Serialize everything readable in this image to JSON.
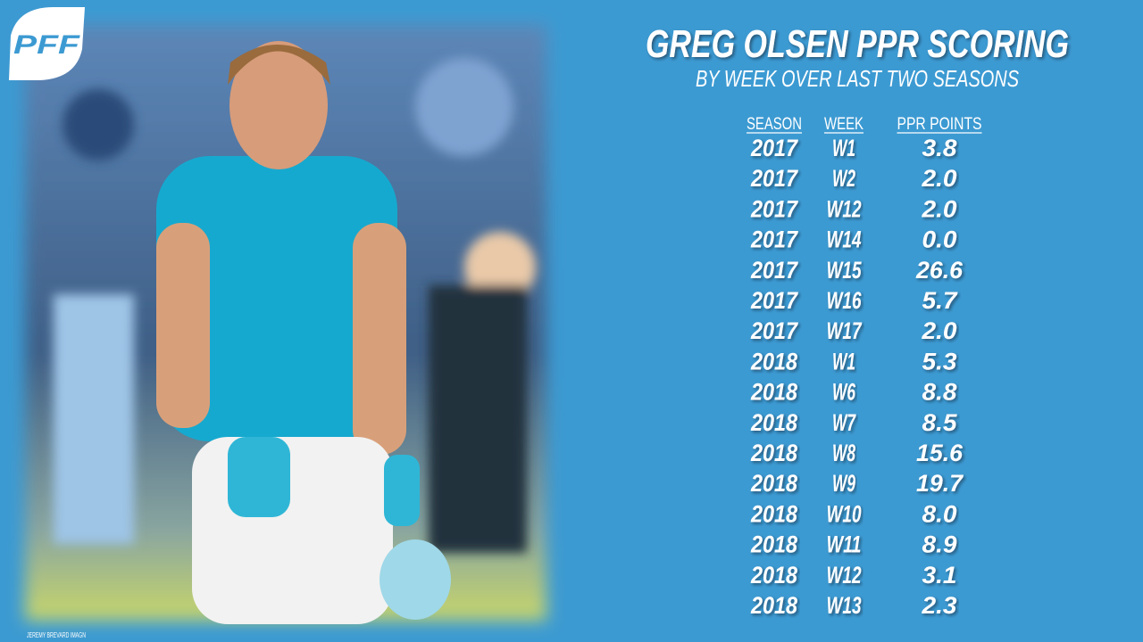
{
  "logo": "PFF",
  "title": "GREG OLSEN PPR SCORING",
  "subtitle": "BY WEEK OVER LAST TWO SEASONS",
  "credit": "JEREMY BREVARD IMAGN",
  "table": {
    "columns": [
      "SEASON",
      "WEEK",
      "PPR POINTS"
    ],
    "rows": [
      [
        "2017",
        "W1",
        "3.8"
      ],
      [
        "2017",
        "W2",
        "2.0"
      ],
      [
        "2017",
        "W12",
        "2.0"
      ],
      [
        "2017",
        "W14",
        "0.0"
      ],
      [
        "2017",
        "W15",
        "26.6"
      ],
      [
        "2017",
        "W16",
        "5.7"
      ],
      [
        "2017",
        "W17",
        "2.0"
      ],
      [
        "2018",
        "W1",
        "5.3"
      ],
      [
        "2018",
        "W6",
        "8.8"
      ],
      [
        "2018",
        "W7",
        "8.5"
      ],
      [
        "2018",
        "W8",
        "15.6"
      ],
      [
        "2018",
        "W9",
        "19.7"
      ],
      [
        "2018",
        "W10",
        "8.0"
      ],
      [
        "2018",
        "W11",
        "8.9"
      ],
      [
        "2018",
        "W12",
        "3.1"
      ],
      [
        "2018",
        "W13",
        "2.3"
      ]
    ]
  }
}
